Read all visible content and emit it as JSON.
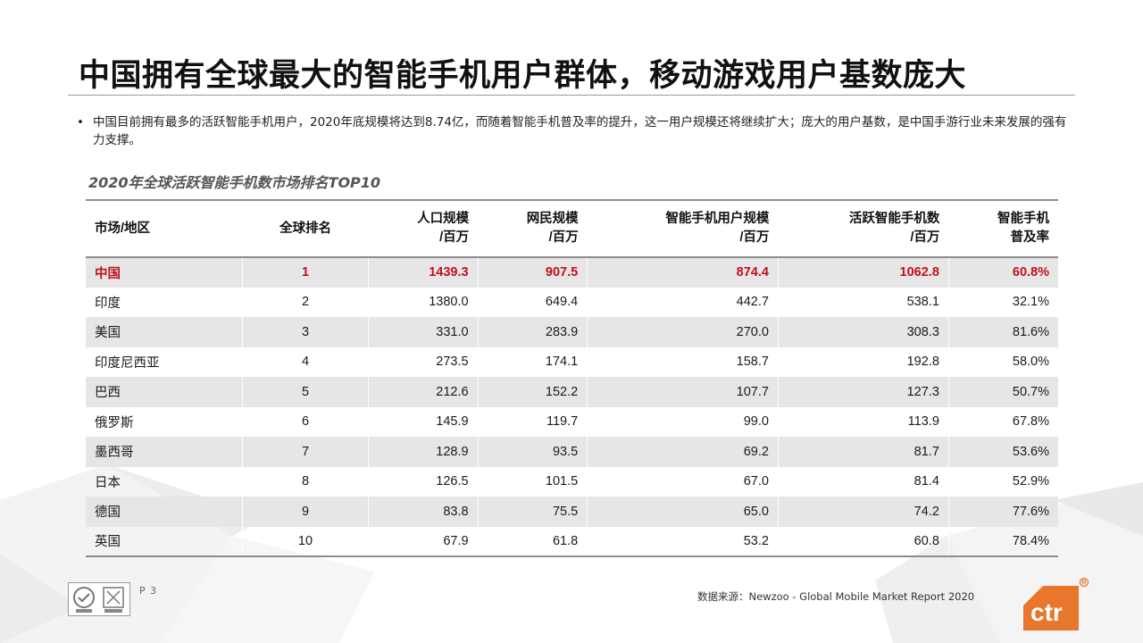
{
  "slide": {
    "title": "中国拥有全球最大的智能手机用户群体，移动游戏用户基数庞大",
    "bullet_marker": "•",
    "bullet": "中国目前拥有最多的活跃智能手机用户，2020年底规模将达到8.74亿，而随着智能手机普及率的提升，这一用户规模还将继续扩大；庞大的用户基数，是中国手游行业未来发展的强有力支撑。",
    "table_title": "2020年全球活跃智能手机数市场排名TOP10",
    "page": "P 3",
    "source": "数据来源：Newzoo - Global Mobile Market Report 2020",
    "logo_text": "ctr",
    "highlight_color": "#c0111f",
    "brand_color": "#e8762b"
  },
  "table": {
    "headers": [
      "市场/地区",
      "全球排名",
      "人口规模\n/百万",
      "网民规模\n/百万",
      "智能手机用户规模\n/百万",
      "活跃智能手机数\n/百万",
      "智能手机\n普及率"
    ],
    "rows": [
      [
        "中国",
        "1",
        "1439.3",
        "907.5",
        "874.4",
        "1062.8",
        "60.8%"
      ],
      [
        "印度",
        "2",
        "1380.0",
        "649.4",
        "442.7",
        "538.1",
        "32.1%"
      ],
      [
        "美国",
        "3",
        "331.0",
        "283.9",
        "270.0",
        "308.3",
        "81.6%"
      ],
      [
        "印度尼西亚",
        "4",
        "273.5",
        "174.1",
        "158.7",
        "192.8",
        "58.0%"
      ],
      [
        "巴西",
        "5",
        "212.6",
        "152.2",
        "107.7",
        "127.3",
        "50.7%"
      ],
      [
        "俄罗斯",
        "6",
        "145.9",
        "119.7",
        "99.0",
        "113.9",
        "67.8%"
      ],
      [
        "墨西哥",
        "7",
        "128.9",
        "93.5",
        "69.2",
        "81.7",
        "53.6%"
      ],
      [
        "日本",
        "8",
        "126.5",
        "101.5",
        "67.0",
        "81.4",
        "52.9%"
      ],
      [
        "德国",
        "9",
        "83.8",
        "75.5",
        "65.0",
        "74.2",
        "77.6%"
      ],
      [
        "英国",
        "10",
        "67.9",
        "61.8",
        "53.2",
        "60.8",
        "78.4%"
      ]
    ]
  }
}
